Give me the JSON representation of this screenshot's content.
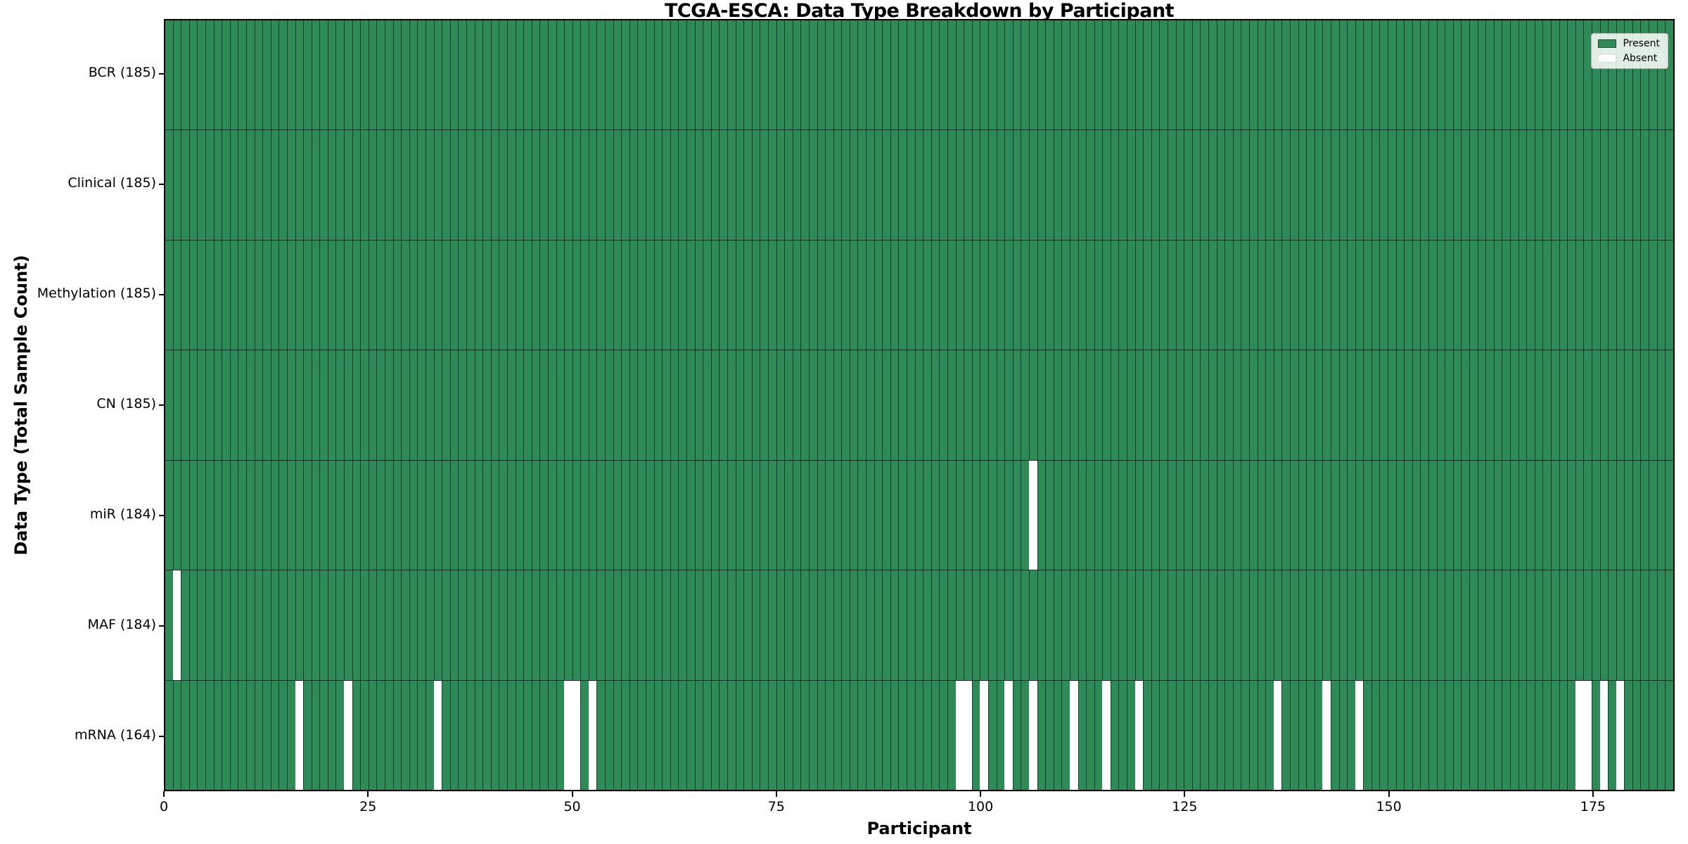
{
  "chart_data": {
    "type": "heatmap",
    "title": "TCGA-ESCA: Data Type Breakdown by Participant",
    "xlabel": "Participant",
    "ylabel": "Data Type (Total Sample Count)",
    "n_participants": 185,
    "xlim": [
      0,
      185
    ],
    "x_ticks": [
      0,
      25,
      50,
      75,
      100,
      125,
      150,
      175
    ],
    "grid": false,
    "legend_position": "upper-right",
    "legend": {
      "items": [
        {
          "label": "Present",
          "color": "#2e8b57"
        },
        {
          "label": "Absent",
          "color": "#ffffff"
        }
      ]
    },
    "colors": {
      "present": "#2e8b57",
      "absent": "#ffffff",
      "cell_edge": "#1e4d33",
      "row_divider": "#111111",
      "axis": "#000000",
      "legend_bg": "rgba(255,255,255,0.85)"
    },
    "rows": [
      {
        "data_type": "BCR",
        "label": "BCR (185)",
        "total": 185,
        "absent_participants": []
      },
      {
        "data_type": "Clinical",
        "label": "Clinical (185)",
        "total": 185,
        "absent_participants": []
      },
      {
        "data_type": "Methylation",
        "label": "Methylation (185)",
        "total": 185,
        "absent_participants": []
      },
      {
        "data_type": "CN",
        "label": "CN (185)",
        "total": 185,
        "absent_participants": []
      },
      {
        "data_type": "miR",
        "label": "miR (184)",
        "total": 184,
        "absent_participants": [
          106
        ]
      },
      {
        "data_type": "MAF",
        "label": "MAF (184)",
        "total": 184,
        "absent_participants": [
          1
        ]
      },
      {
        "data_type": "mRNA",
        "label": "mRNA (164)",
        "total": 164,
        "absent_participants": [
          16,
          22,
          33,
          49,
          50,
          52,
          97,
          98,
          100,
          103,
          106,
          111,
          115,
          119,
          136,
          142,
          146,
          173,
          174,
          176,
          178
        ]
      }
    ]
  }
}
